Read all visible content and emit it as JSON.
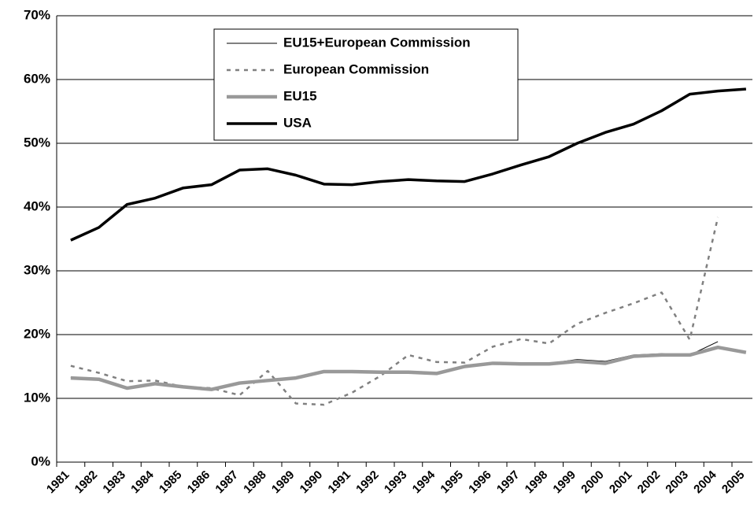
{
  "chart_data": {
    "type": "line",
    "categories": [
      "1981",
      "1982",
      "1983",
      "1984",
      "1985",
      "1986",
      "1987",
      "1988",
      "1989",
      "1990",
      "1991",
      "1992",
      "1993",
      "1994",
      "1995",
      "1996",
      "1997",
      "1998",
      "1999",
      "2000",
      "2001",
      "2002",
      "2003",
      "2004",
      "2005"
    ],
    "series": [
      {
        "name": "EU15+European Commission",
        "color": "#000000",
        "values": [
          13.3,
          13.1,
          11.7,
          12.3,
          11.8,
          11.5,
          12.5,
          12.8,
          13.3,
          14.3,
          14.3,
          14.2,
          14.2,
          14.0,
          15.1,
          15.6,
          15.5,
          15.5,
          16.1,
          15.8,
          16.8,
          17.0,
          16.8,
          18.9,
          null
        ]
      },
      {
        "name": "European Commission",
        "color": "#808080",
        "values": [
          15.1,
          14.0,
          12.7,
          12.8,
          11.8,
          11.6,
          10.5,
          14.3,
          9.2,
          9.0,
          10.9,
          13.5,
          16.8,
          15.7,
          15.6,
          18.1,
          19.3,
          18.6,
          21.7,
          23.4,
          24.9,
          26.6,
          19.2,
          38.4,
          null
        ]
      },
      {
        "name": "EU15",
        "color": "#999999",
        "values": [
          13.2,
          13.0,
          11.6,
          12.3,
          11.8,
          11.4,
          12.4,
          12.8,
          13.2,
          14.2,
          14.2,
          14.1,
          14.1,
          13.9,
          15.0,
          15.5,
          15.4,
          15.4,
          15.8,
          15.5,
          16.6,
          16.8,
          16.8,
          18.0,
          17.2
        ]
      },
      {
        "name": "USA",
        "color": "#000000",
        "values": [
          34.8,
          36.8,
          40.4,
          41.4,
          43.0,
          43.5,
          45.8,
          46.0,
          45.0,
          43.6,
          43.5,
          44.0,
          44.3,
          44.1,
          44.0,
          45.2,
          46.6,
          47.9,
          50.0,
          51.7,
          53.0,
          55.1,
          57.7,
          58.2,
          58.5
        ]
      }
    ],
    "ylim": [
      0,
      70
    ],
    "yticks": [
      {
        "value": 0,
        "label": "0%"
      },
      {
        "value": 10,
        "label": "10%"
      },
      {
        "value": 20,
        "label": "20%"
      },
      {
        "value": 30,
        "label": "30%"
      },
      {
        "value": 40,
        "label": "40%"
      },
      {
        "value": 50,
        "label": "50%"
      },
      {
        "value": 60,
        "label": "60%"
      },
      {
        "value": 70,
        "label": "70%"
      }
    ],
    "grid": true
  }
}
